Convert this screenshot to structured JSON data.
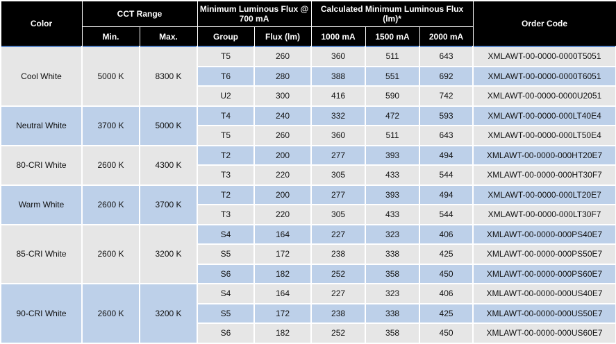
{
  "header": {
    "color": "Color",
    "cct_range": "CCT Range",
    "min": "Min.",
    "max": "Max.",
    "min_flux": "Minimum Luminous Flux  @ 700 mA",
    "group": "Group",
    "flux": "Flux (lm)",
    "calc_flux": "Calculated Minimum Luminous Flux (lm)*",
    "c1000": "1000 mA",
    "c1500": "1500 mA",
    "c2000": "2000 mA",
    "order_code": "Order Code"
  },
  "colors": {
    "header_bg": "#000000",
    "row_gray": "#e6e6e6",
    "row_blue": "#bdd0e9",
    "group_border": "#5a86c8"
  },
  "groups": [
    {
      "color": "Cool White",
      "min": "5000 K",
      "max": "8300 K",
      "rows": [
        {
          "group": "T5",
          "flux": "260",
          "c1000": "360",
          "c1500": "511",
          "c2000": "643",
          "code": "XMLAWT-00-0000-0000T5051"
        },
        {
          "group": "T6",
          "flux": "280",
          "c1000": "388",
          "c1500": "551",
          "c2000": "692",
          "code": "XMLAWT-00-0000-0000T6051"
        },
        {
          "group": "U2",
          "flux": "300",
          "c1000": "416",
          "c1500": "590",
          "c2000": "742",
          "code": "XMLAWT-00-0000-0000U2051"
        }
      ]
    },
    {
      "color": "Neutral White",
      "min": "3700 K",
      "max": "5000 K",
      "rows": [
        {
          "group": "T4",
          "flux": "240",
          "c1000": "332",
          "c1500": "472",
          "c2000": "593",
          "code": "XMLAWT-00-0000-000LT40E4"
        },
        {
          "group": "T5",
          "flux": "260",
          "c1000": "360",
          "c1500": "511",
          "c2000": "643",
          "code": "XMLAWT-00-0000-000LT50E4"
        }
      ]
    },
    {
      "color": "80-CRI White",
      "min": "2600 K",
      "max": "4300 K",
      "rows": [
        {
          "group": "T2",
          "flux": "200",
          "c1000": "277",
          "c1500": "393",
          "c2000": "494",
          "code": "XMLAWT-00-0000-000HT20E7"
        },
        {
          "group": "T3",
          "flux": "220",
          "c1000": "305",
          "c1500": "433",
          "c2000": "544",
          "code": "XMLAWT-00-0000-000HT30F7"
        }
      ]
    },
    {
      "color": "Warm White",
      "min": "2600 K",
      "max": "3700 K",
      "rows": [
        {
          "group": "T2",
          "flux": "200",
          "c1000": "277",
          "c1500": "393",
          "c2000": "494",
          "code": "XMLAWT-00-0000-000LT20E7"
        },
        {
          "group": "T3",
          "flux": "220",
          "c1000": "305",
          "c1500": "433",
          "c2000": "544",
          "code": "XMLAWT-00-0000-000LT30F7"
        }
      ]
    },
    {
      "color": "85-CRI White",
      "min": "2600 K",
      "max": "3200 K",
      "rows": [
        {
          "group": "S4",
          "flux": "164",
          "c1000": "227",
          "c1500": "323",
          "c2000": "406",
          "code": "XMLAWT-00-0000-000PS40E7"
        },
        {
          "group": "S5",
          "flux": "172",
          "c1000": "238",
          "c1500": "338",
          "c2000": "425",
          "code": "XMLAWT-00-0000-000PS50E7"
        },
        {
          "group": "S6",
          "flux": "182",
          "c1000": "252",
          "c1500": "358",
          "c2000": "450",
          "code": "XMLAWT-00-0000-000PS60E7"
        }
      ]
    },
    {
      "color": "90-CRI White",
      "min": "2600 K",
      "max": "3200 K",
      "rows": [
        {
          "group": "S4",
          "flux": "164",
          "c1000": "227",
          "c1500": "323",
          "c2000": "406",
          "code": "XMLAWT-00-0000-000US40E7"
        },
        {
          "group": "S5",
          "flux": "172",
          "c1000": "238",
          "c1500": "338",
          "c2000": "425",
          "code": "XMLAWT-00-0000-000US50E7"
        },
        {
          "group": "S6",
          "flux": "182",
          "c1000": "252",
          "c1500": "358",
          "c2000": "450",
          "code": "XMLAWT-00-0000-000US60E7"
        }
      ]
    }
  ]
}
